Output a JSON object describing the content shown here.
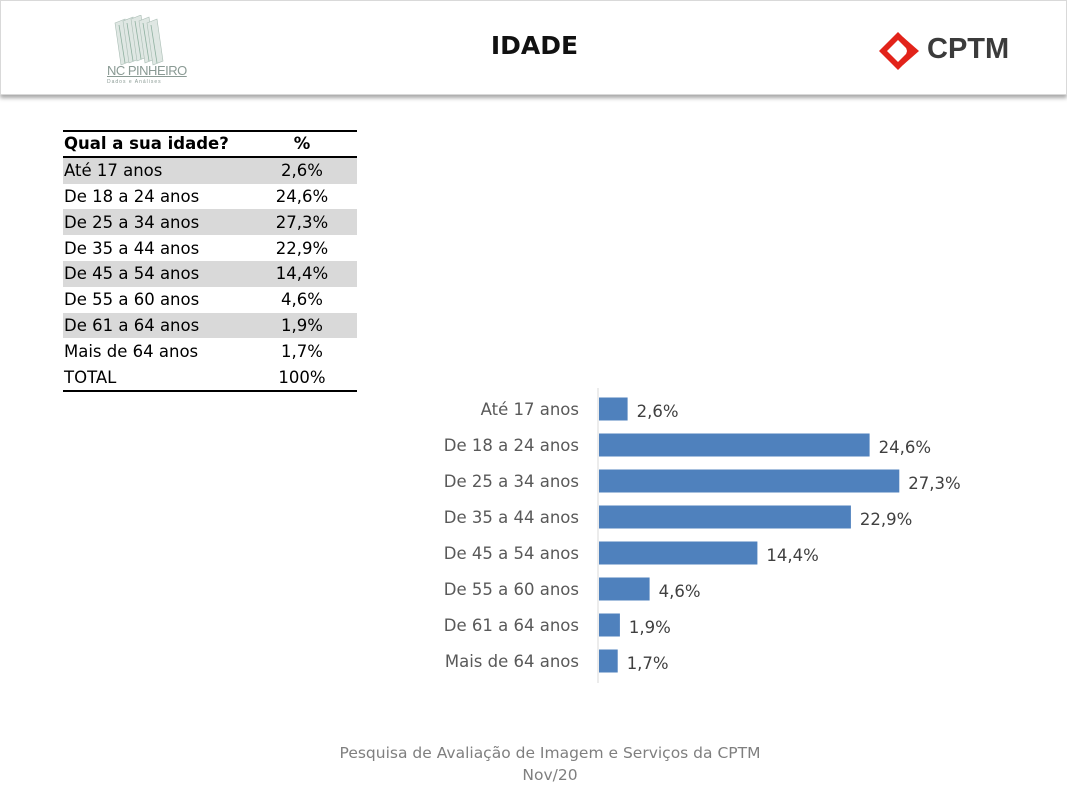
{
  "header": {
    "title": "IDADE",
    "left_logo_text": "NC PINHEIRO",
    "left_logo_sub": "Dados e Análises",
    "right_logo_text": "CPTM"
  },
  "table": {
    "headers": [
      "Qual a sua idade?",
      "%"
    ],
    "rows": [
      {
        "label": "Até 17 anos",
        "value": "2,6%"
      },
      {
        "label": "De 18 a 24 anos",
        "value": "24,6%"
      },
      {
        "label": "De 25 a 34 anos",
        "value": "27,3%"
      },
      {
        "label": "De 35 a 44 anos",
        "value": "22,9%"
      },
      {
        "label": "De 45 a 54 anos",
        "value": "14,4%"
      },
      {
        "label": "De 55 a 60 anos",
        "value": "4,6%"
      },
      {
        "label": "De 61 a 64 anos",
        "value": "1,9%"
      },
      {
        "label": "Mais de 64 anos",
        "value": "1,7%"
      },
      {
        "label": "TOTAL",
        "value": "100%"
      }
    ]
  },
  "chart_data": {
    "type": "bar",
    "orientation": "horizontal",
    "categories": [
      "Até 17 anos",
      "De 18 a 24 anos",
      "De 25 a 34 anos",
      "De 35 a 44 anos",
      "De 45 a 54 anos",
      "De 55 a 60 anos",
      "De 61 a 64 anos",
      "Mais de 64 anos"
    ],
    "values": [
      2.6,
      24.6,
      27.3,
      22.9,
      14.4,
      4.6,
      1.9,
      1.7
    ],
    "value_labels": [
      "2,6%",
      "24,6%",
      "27,3%",
      "22,9%",
      "14,4%",
      "4,6%",
      "1,9%",
      "1,7%"
    ],
    "title": "",
    "xlabel": "",
    "ylabel": "",
    "xlim": [
      0,
      30
    ],
    "grid": false,
    "legend": "none",
    "bar_color": "#4f81bd"
  },
  "footer": {
    "line1": "Pesquisa de Avaliação de Imagem  e Serviços da CPTM",
    "line2": "Nov/20"
  },
  "colors": {
    "cptm_red": "#e2231a",
    "row_shade": "#d9d9d9",
    "footer_gray": "#7f7f7f"
  }
}
